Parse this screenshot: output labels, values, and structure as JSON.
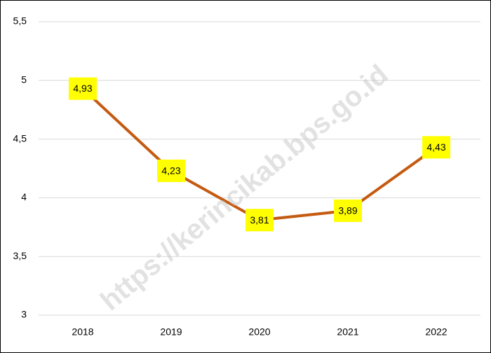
{
  "chart_data": {
    "type": "line",
    "watermark": "https://kerincikab.bps.go.id",
    "categories": [
      "2018",
      "2019",
      "2020",
      "2021",
      "2022"
    ],
    "series": [
      {
        "name": null,
        "color": "#c55a11",
        "values": [
          4.93,
          4.23,
          3.81,
          3.89,
          4.43
        ],
        "value_labels": [
          "4,93",
          "4,23",
          "3,81",
          "3,89",
          "4,43"
        ]
      }
    ],
    "ylim": [
      3,
      5.5
    ],
    "yticks": [
      3,
      {
        "value": 3.5,
        "label": "3,5"
      },
      4,
      {
        "value": 4.5,
        "label": "4,5"
      },
      5,
      {
        "value": 5.5,
        "label": "5,5"
      }
    ],
    "grid": true,
    "label_box_color": "#ffff00"
  }
}
